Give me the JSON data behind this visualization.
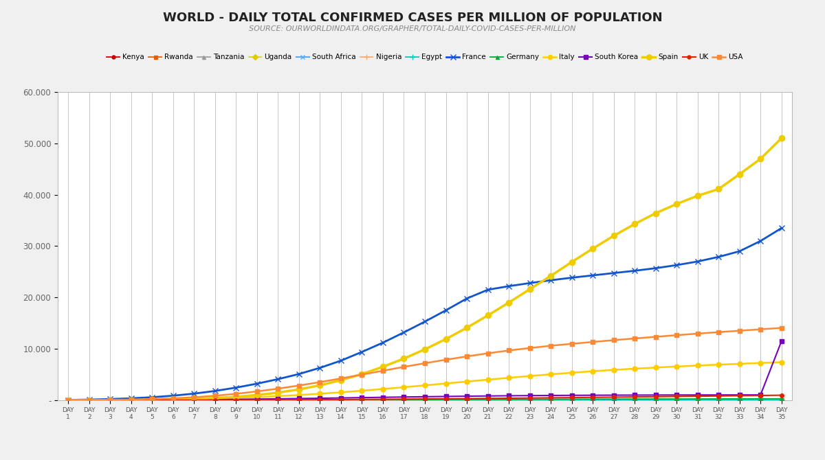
{
  "title": "WORLD - DAILY TOTAL CONFIRMED CASES PER MILLION OF POPULATION",
  "subtitle": "SOURCE: OURWORLDINDATA.ORG/GRAPHER/TOTAL-DAILY-COVID-CASES-PER-MILLION",
  "days": [
    1,
    2,
    3,
    4,
    5,
    6,
    7,
    8,
    9,
    10,
    11,
    12,
    13,
    14,
    15,
    16,
    17,
    18,
    19,
    20,
    21,
    22,
    23,
    24,
    25,
    26,
    27,
    28,
    29,
    30,
    31,
    32,
    33,
    34,
    35
  ],
  "series": [
    {
      "name": "Kenya",
      "color": "#cc0000",
      "marker": "o",
      "ms": 4,
      "lw": 1.3,
      "values": [
        0.04,
        0.06,
        0.08,
        0.1,
        0.12,
        0.14,
        0.16,
        0.18,
        0.2,
        0.25,
        0.3,
        0.38,
        0.46,
        0.55,
        0.65,
        0.75,
        0.88,
        1.0,
        1.15,
        1.3,
        1.48,
        1.68,
        1.9,
        2.15,
        2.42,
        2.7,
        3.0,
        3.3,
        3.65,
        4.0,
        4.38,
        4.7,
        5.1,
        5.5,
        5.9
      ]
    },
    {
      "name": "Rwanda",
      "color": "#e06000",
      "marker": "s",
      "ms": 4,
      "lw": 1.3,
      "values": [
        0.08,
        0.19,
        0.38,
        0.65,
        1.0,
        1.5,
        2.1,
        2.8,
        3.6,
        4.5,
        5.4,
        6.2,
        7.0,
        7.6,
        8.0,
        8.3,
        8.55,
        8.75,
        8.92,
        9.05,
        9.15,
        9.22,
        9.3,
        9.38,
        9.45,
        9.52,
        9.58,
        9.65,
        9.72,
        9.8,
        9.88,
        9.95,
        10.05,
        10.15,
        10.25
      ]
    },
    {
      "name": "Tanzania",
      "color": "#999999",
      "marker": "^",
      "ms": 4,
      "lw": 1.2,
      "values": [
        0.02,
        0.04,
        0.06,
        0.08,
        0.1,
        0.12,
        0.14,
        0.16,
        0.18,
        0.2,
        0.22,
        0.25,
        0.28,
        0.32,
        0.36,
        0.4,
        0.45,
        0.5,
        0.55,
        0.6,
        0.65,
        0.7,
        0.75,
        0.8,
        0.85,
        0.9,
        0.95,
        1.0,
        1.05,
        1.1,
        1.15,
        1.2,
        1.25,
        1.3,
        1.35
      ]
    },
    {
      "name": "Uganda",
      "color": "#ddcc00",
      "marker": "D",
      "ms": 4,
      "lw": 1.2,
      "values": [
        0.02,
        0.04,
        0.06,
        0.08,
        0.1,
        0.12,
        0.15,
        0.18,
        0.22,
        0.26,
        0.3,
        0.34,
        0.38,
        0.42,
        0.46,
        0.5,
        0.55,
        0.6,
        0.65,
        0.7,
        0.75,
        0.8,
        0.85,
        0.9,
        0.95,
        1.0,
        1.05,
        1.1,
        1.15,
        1.2,
        1.25,
        1.3,
        1.35,
        1.4,
        1.45
      ]
    },
    {
      "name": "South Africa",
      "color": "#55aaff",
      "marker": "x",
      "ms": 5,
      "lw": 1.5,
      "values": [
        0.1,
        0.2,
        0.35,
        0.55,
        0.85,
        1.25,
        1.8,
        2.5,
        3.35,
        4.4,
        5.6,
        7.0,
        8.6,
        10.4,
        12.3,
        14.4,
        16.6,
        18.9,
        21.3,
        23.7,
        26.1,
        28.4,
        30.6,
        32.6,
        34.4,
        36.0,
        37.4,
        38.6,
        39.65,
        40.55,
        41.35,
        42.05,
        42.7,
        43.3,
        43.85
      ]
    },
    {
      "name": "Nigeria",
      "color": "#ffaa66",
      "marker": "+",
      "ms": 6,
      "lw": 1.3,
      "values": [
        0.02,
        0.04,
        0.06,
        0.08,
        0.1,
        0.13,
        0.17,
        0.22,
        0.28,
        0.35,
        0.43,
        0.52,
        0.62,
        0.73,
        0.86,
        1.0,
        1.16,
        1.34,
        1.54,
        1.76,
        2.0,
        2.26,
        2.54,
        2.84,
        3.16,
        3.5,
        3.86,
        4.24,
        4.64,
        5.06,
        5.5,
        5.95,
        6.4,
        6.85,
        7.3
      ]
    },
    {
      "name": "Egypt",
      "color": "#00ccbb",
      "marker": "+",
      "ms": 6,
      "lw": 1.3,
      "values": [
        0.04,
        0.07,
        0.11,
        0.16,
        0.23,
        0.32,
        0.43,
        0.56,
        0.72,
        0.91,
        1.13,
        1.38,
        1.66,
        1.97,
        2.31,
        2.68,
        3.08,
        3.51,
        3.97,
        4.46,
        4.98,
        5.53,
        6.1,
        6.7,
        7.32,
        7.96,
        8.62,
        9.3,
        10.0,
        10.72,
        11.46,
        12.22,
        12.99,
        13.78,
        14.58
      ]
    },
    {
      "name": "France",
      "color": "#1155cc",
      "marker": "x",
      "ms": 6,
      "lw": 2.0,
      "values": [
        50,
        120,
        220,
        370,
        580,
        880,
        1280,
        1800,
        2450,
        3220,
        4100,
        5100,
        6300,
        7700,
        9400,
        11200,
        13200,
        15300,
        17500,
        19800,
        21500,
        22200,
        22800,
        23350,
        23850,
        24300,
        24750,
        25200,
        25700,
        26300,
        27000,
        27900,
        29000,
        31000,
        33500
      ]
    },
    {
      "name": "Germany",
      "color": "#00aa33",
      "marker": "^",
      "ms": 4,
      "lw": 1.3,
      "values": [
        0.5,
        1.0,
        2.0,
        3.5,
        5.5,
        8.5,
        12.5,
        17.5,
        24.0,
        31.5,
        40.0,
        49.5,
        60.0,
        71.5,
        83.5,
        96.0,
        109.0,
        122.0,
        135.0,
        148.0,
        160.0,
        172.0,
        183.0,
        194.0,
        204.0,
        213.0,
        222.0,
        230.0,
        238.0,
        245.0,
        252.0,
        258.0,
        264.0,
        270.0,
        276.0
      ]
    },
    {
      "name": "Italy",
      "color": "#ffcc00",
      "marker": "o",
      "ms": 5,
      "lw": 1.8,
      "values": [
        5,
        12,
        25,
        45,
        80,
        135,
        210,
        310,
        440,
        600,
        790,
        1010,
        1260,
        1540,
        1850,
        2180,
        2530,
        2890,
        3260,
        3630,
        4000,
        4360,
        4710,
        5040,
        5350,
        5640,
        5900,
        6140,
        6360,
        6560,
        6745,
        6920,
        7085,
        7245,
        7400
      ]
    },
    {
      "name": "South Korea",
      "color": "#7700bb",
      "marker": "s",
      "ms": 5,
      "lw": 1.5,
      "values": [
        5,
        10,
        18,
        30,
        46,
        68,
        96,
        130,
        170,
        216,
        268,
        324,
        382,
        442,
        503,
        563,
        621,
        677,
        730,
        779,
        823,
        862,
        896,
        925,
        949,
        968,
        983,
        995,
        1005,
        1013,
        1020,
        1026,
        1032,
        1038,
        11500
      ]
    },
    {
      "name": "Spain",
      "color": "#eecc00",
      "marker": "o",
      "ms": 6,
      "lw": 2.5,
      "values": [
        5,
        12,
        25,
        48,
        88,
        155,
        260,
        420,
        660,
        1000,
        1480,
        2100,
        2900,
        3900,
        5100,
        6500,
        8100,
        9900,
        11900,
        14100,
        16500,
        19000,
        21600,
        24200,
        26900,
        29500,
        32000,
        34300,
        36400,
        38200,
        39800,
        41100,
        44000,
        47000,
        51000
      ]
    },
    {
      "name": "UK",
      "color": "#dd2200",
      "marker": "o",
      "ms": 4,
      "lw": 1.5,
      "values": [
        0.5,
        1.2,
        2.5,
        4.5,
        7.5,
        12.0,
        18.5,
        27.0,
        38.0,
        51.5,
        67.5,
        86.0,
        107.0,
        130.0,
        155.0,
        182.0,
        211.0,
        242.0,
        275.0,
        310.0,
        347.0,
        385.0,
        424.0,
        465.0,
        507.0,
        550.0,
        594.0,
        638.0,
        683.0,
        729.0,
        776.0,
        824.0,
        873.0,
        923.0,
        974.0
      ]
    },
    {
      "name": "USA",
      "color": "#ff8833",
      "marker": "s",
      "ms": 5,
      "lw": 1.8,
      "values": [
        10,
        28,
        60,
        115,
        210,
        360,
        575,
        870,
        1250,
        1710,
        2250,
        2860,
        3520,
        4240,
        4980,
        5740,
        6490,
        7200,
        7880,
        8530,
        9130,
        9680,
        10160,
        10600,
        10980,
        11340,
        11690,
        12020,
        12340,
        12660,
        12960,
        13250,
        13530,
        13800,
        14080
      ]
    }
  ],
  "ylim": [
    0,
    60000
  ],
  "yticks": [
    0,
    10000,
    20000,
    30000,
    40000,
    50000,
    60000
  ],
  "ytick_labels": [
    "-",
    "10.000",
    "20.000",
    "30.000",
    "40.000",
    "50.000",
    "60.000"
  ],
  "bg_color": "#f0f0f0",
  "plot_bg": "#ffffff",
  "grid_color": "#bbbbbb",
  "title_fontsize": 13,
  "subtitle_fontsize": 8,
  "legend_fontsize": 7.5
}
